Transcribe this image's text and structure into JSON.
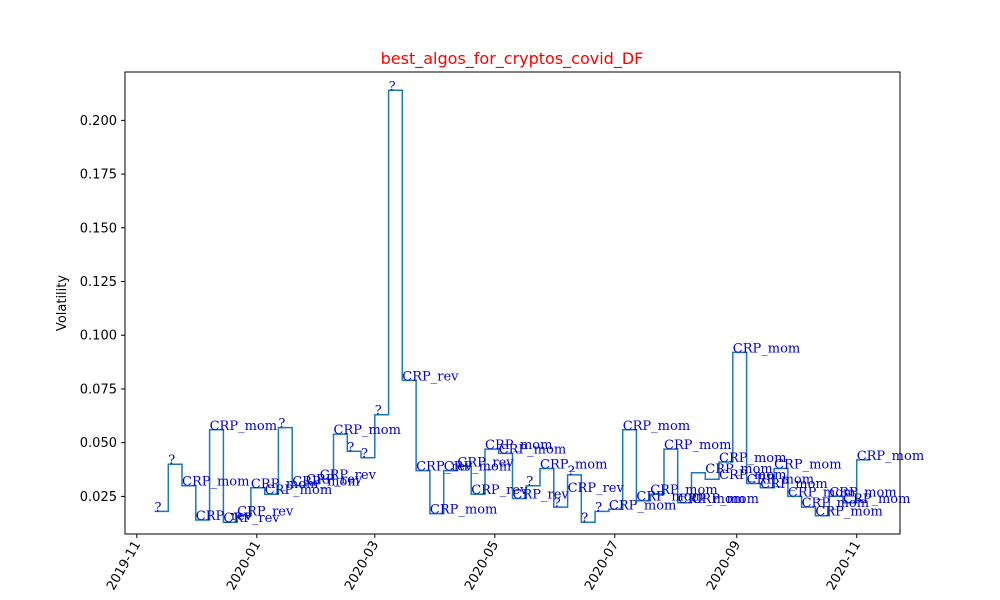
{
  "chart_data": {
    "type": "line",
    "drawstyle": "steps-post",
    "title": "best_algos_for_cryptos_covid_DF",
    "title_color": "#ff0000",
    "xlabel": "",
    "ylabel": "Volatility",
    "x_axis_type": "date",
    "xlim": [
      "2019-10-26",
      "2020-11-23"
    ],
    "ylim": [
      0.0075,
      0.2225
    ],
    "x_ticks": [
      "2019-11-01",
      "2020-01-01",
      "2020-03-01",
      "2020-05-01",
      "2020-07-01",
      "2020-09-01",
      "2020-11-01"
    ],
    "x_tick_labels": [
      "2019-11",
      "2020-01",
      "2020-03",
      "2020-05",
      "2020-07",
      "2020-09",
      "2020-11"
    ],
    "y_ticks": [
      0.025,
      0.05,
      0.075,
      0.1,
      0.125,
      0.15,
      0.175,
      0.2
    ],
    "y_tick_labels": [
      "0.025",
      "0.050",
      "0.075",
      "0.100",
      "0.125",
      "0.150",
      "0.175",
      "0.200"
    ],
    "grid": false,
    "line_color": "#1f77b4",
    "annotation_color": "#0000cc",
    "series": [
      {
        "x": [
          "2019-11-10",
          "2019-11-17",
          "2019-11-24",
          "2019-12-01",
          "2019-12-08",
          "2019-12-15",
          "2019-12-22",
          "2019-12-29",
          "2020-01-05",
          "2020-01-12",
          "2020-01-19",
          "2020-01-26",
          "2020-02-02",
          "2020-02-09",
          "2020-02-16",
          "2020-02-23",
          "2020-03-01",
          "2020-03-08",
          "2020-03-15",
          "2020-03-22",
          "2020-03-29",
          "2020-04-05",
          "2020-04-12",
          "2020-04-19",
          "2020-04-26",
          "2020-05-03",
          "2020-05-10",
          "2020-05-17",
          "2020-05-24",
          "2020-05-31",
          "2020-06-07",
          "2020-06-14",
          "2020-06-21",
          "2020-06-28",
          "2020-07-05",
          "2020-07-12",
          "2020-07-19",
          "2020-07-26",
          "2020-08-02",
          "2020-08-09",
          "2020-08-16",
          "2020-08-23",
          "2020-08-30",
          "2020-09-06",
          "2020-09-13",
          "2020-09-20",
          "2020-09-27",
          "2020-10-04",
          "2020-10-11",
          "2020-10-18",
          "2020-10-25",
          "2020-11-01",
          "2020-11-08"
        ],
        "y": [
          0.018,
          0.04,
          0.03,
          0.014,
          0.056,
          0.013,
          0.016,
          0.029,
          0.026,
          0.057,
          0.03,
          0.031,
          0.033,
          0.054,
          0.046,
          0.043,
          0.063,
          0.214,
          0.079,
          0.037,
          0.017,
          0.037,
          0.039,
          0.026,
          0.047,
          0.045,
          0.024,
          0.03,
          0.038,
          0.02,
          0.035,
          0.013,
          0.018,
          0.019,
          0.056,
          0.023,
          0.026,
          0.047,
          0.022,
          0.036,
          0.033,
          0.041,
          0.092,
          0.031,
          0.029,
          0.038,
          0.025,
          0.02,
          0.016,
          0.025,
          0.022,
          0.042,
          0.042
        ]
      }
    ],
    "annotations": [
      {
        "x": "2019-11-10",
        "y": 0.018,
        "text": "?"
      },
      {
        "x": "2019-11-17",
        "y": 0.04,
        "text": "?"
      },
      {
        "x": "2019-11-24",
        "y": 0.03,
        "text": "CRP_mom"
      },
      {
        "x": "2019-12-01",
        "y": 0.014,
        "text": "CRP_rev"
      },
      {
        "x": "2019-12-08",
        "y": 0.056,
        "text": "CRP_mom"
      },
      {
        "x": "2019-12-15",
        "y": 0.013,
        "text": "CRP_rev"
      },
      {
        "x": "2019-12-22",
        "y": 0.016,
        "text": "CRP_rev"
      },
      {
        "x": "2019-12-29",
        "y": 0.029,
        "text": "CRP_mom"
      },
      {
        "x": "2020-01-05",
        "y": 0.026,
        "text": "CRP_mom"
      },
      {
        "x": "2020-01-12",
        "y": 0.057,
        "text": "?"
      },
      {
        "x": "2020-01-19",
        "y": 0.03,
        "text": "CRP_mom"
      },
      {
        "x": "2020-01-26",
        "y": 0.031,
        "text": "CRP_rev"
      },
      {
        "x": "2020-02-02",
        "y": 0.033,
        "text": "CRP_rev"
      },
      {
        "x": "2020-02-09",
        "y": 0.054,
        "text": "CRP_mom"
      },
      {
        "x": "2020-02-16",
        "y": 0.046,
        "text": "?"
      },
      {
        "x": "2020-02-23",
        "y": 0.043,
        "text": "?"
      },
      {
        "x": "2020-03-01",
        "y": 0.063,
        "text": "?"
      },
      {
        "x": "2020-03-08",
        "y": 0.214,
        "text": "?"
      },
      {
        "x": "2020-03-15",
        "y": 0.079,
        "text": "CRP_rev"
      },
      {
        "x": "2020-03-22",
        "y": 0.037,
        "text": "CRP_rev"
      },
      {
        "x": "2020-03-29",
        "y": 0.017,
        "text": "CRP_mom"
      },
      {
        "x": "2020-04-05",
        "y": 0.037,
        "text": "CRP_mom"
      },
      {
        "x": "2020-04-12",
        "y": 0.039,
        "text": "CRP_rev"
      },
      {
        "x": "2020-04-19",
        "y": 0.026,
        "text": "CRP_rev"
      },
      {
        "x": "2020-04-26",
        "y": 0.047,
        "text": "CRP_mom"
      },
      {
        "x": "2020-05-03",
        "y": 0.045,
        "text": "CRP_mom"
      },
      {
        "x": "2020-05-10",
        "y": 0.024,
        "text": "CRP_rev"
      },
      {
        "x": "2020-05-17",
        "y": 0.03,
        "text": "?"
      },
      {
        "x": "2020-05-24",
        "y": 0.038,
        "text": "CRP_mom"
      },
      {
        "x": "2020-05-31",
        "y": 0.02,
        "text": "?"
      },
      {
        "x": "2020-06-07",
        "y": 0.035,
        "text": "?"
      },
      {
        "x": "2020-06-07",
        "y": 0.027,
        "text": "CRP_rev"
      },
      {
        "x": "2020-06-14",
        "y": 0.013,
        "text": "?"
      },
      {
        "x": "2020-06-21",
        "y": 0.018,
        "text": "?"
      },
      {
        "x": "2020-06-28",
        "y": 0.019,
        "text": "CRP_mom"
      },
      {
        "x": "2020-07-05",
        "y": 0.056,
        "text": "CRP_mom"
      },
      {
        "x": "2020-07-12",
        "y": 0.023,
        "text": "CRP_mom"
      },
      {
        "x": "2020-07-19",
        "y": 0.026,
        "text": "CRP_mom"
      },
      {
        "x": "2020-07-26",
        "y": 0.047,
        "text": "CRP_mom"
      },
      {
        "x": "2020-08-02",
        "y": 0.022,
        "text": "CRP_mom"
      },
      {
        "x": "2020-08-09",
        "y": 0.022,
        "text": "CRP_mom"
      },
      {
        "x": "2020-08-16",
        "y": 0.036,
        "text": "CRP_mom"
      },
      {
        "x": "2020-08-23",
        "y": 0.033,
        "text": "CRP_mom"
      },
      {
        "x": "2020-08-23",
        "y": 0.041,
        "text": "CRP_mom"
      },
      {
        "x": "2020-08-30",
        "y": 0.092,
        "text": "CRP_mom"
      },
      {
        "x": "2020-09-06",
        "y": 0.031,
        "text": "CRP_mom"
      },
      {
        "x": "2020-09-13",
        "y": 0.029,
        "text": "CRP_mom"
      },
      {
        "x": "2020-09-20",
        "y": 0.038,
        "text": "CRP_mom"
      },
      {
        "x": "2020-09-27",
        "y": 0.025,
        "text": "CRP_mom"
      },
      {
        "x": "2020-10-04",
        "y": 0.02,
        "text": "CRP_mom"
      },
      {
        "x": "2020-10-11",
        "y": 0.016,
        "text": "CRP_mom"
      },
      {
        "x": "2020-10-18",
        "y": 0.025,
        "text": "CRP_mom"
      },
      {
        "x": "2020-10-25",
        "y": 0.022,
        "text": "CRP_mom"
      },
      {
        "x": "2020-11-01",
        "y": 0.042,
        "text": "CRP_mom"
      }
    ]
  }
}
